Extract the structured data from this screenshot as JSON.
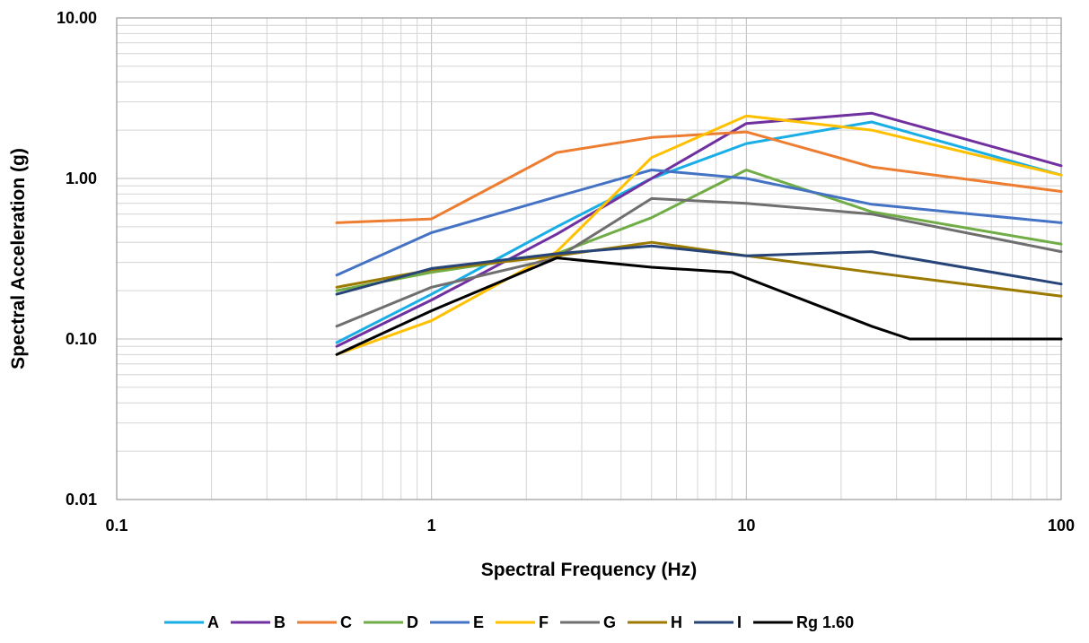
{
  "chart_data": {
    "type": "line",
    "xscale": "log",
    "yscale": "log",
    "xlim": [
      0.1,
      100
    ],
    "ylim": [
      0.01,
      10
    ],
    "xlabel": "Spectral Frequency (Hz)",
    "ylabel": "Spectral Acceleration (g)",
    "xticks": [
      "0.1",
      "1",
      "10",
      "100"
    ],
    "yticks": [
      "0.01",
      "0.10",
      "1.00",
      "10.00"
    ],
    "grid": true,
    "legend_position": "bottom",
    "series": [
      {
        "name": "A",
        "color": "#1aaee6",
        "points": [
          [
            0.5,
            0.095
          ],
          [
            1,
            0.19
          ],
          [
            2.5,
            0.5
          ],
          [
            5,
            1.0
          ],
          [
            10,
            1.65
          ],
          [
            25,
            2.25
          ],
          [
            100,
            1.05
          ]
        ]
      },
      {
        "name": "B",
        "color": "#7030a0",
        "points": [
          [
            0.5,
            0.09
          ],
          [
            1,
            0.175
          ],
          [
            2.5,
            0.45
          ],
          [
            5,
            1.0
          ],
          [
            10,
            2.2
          ],
          [
            25,
            2.55
          ],
          [
            100,
            1.2
          ]
        ]
      },
      {
        "name": "C",
        "color": "#ed7d31",
        "points": [
          [
            0.5,
            0.53
          ],
          [
            1,
            0.56
          ],
          [
            2.5,
            1.45
          ],
          [
            5,
            1.8
          ],
          [
            10,
            1.95
          ],
          [
            25,
            1.18
          ],
          [
            100,
            0.83
          ]
        ]
      },
      {
        "name": "D",
        "color": "#70ad47",
        "points": [
          [
            0.5,
            0.2
          ],
          [
            1,
            0.26
          ],
          [
            2.5,
            0.34
          ],
          [
            5,
            0.57
          ],
          [
            10,
            1.13
          ],
          [
            25,
            0.62
          ],
          [
            100,
            0.39
          ]
        ]
      },
      {
        "name": "E",
        "color": "#4472c4",
        "points": [
          [
            0.5,
            0.25
          ],
          [
            1,
            0.46
          ],
          [
            2.5,
            0.77
          ],
          [
            5,
            1.13
          ],
          [
            10,
            1.0
          ],
          [
            25,
            0.69
          ],
          [
            100,
            0.53
          ]
        ]
      },
      {
        "name": "F",
        "color": "#ffc000",
        "points": [
          [
            0.5,
            0.08
          ],
          [
            1,
            0.13
          ],
          [
            2.5,
            0.35
          ],
          [
            5,
            1.35
          ],
          [
            10,
            2.45
          ],
          [
            25,
            2.0
          ],
          [
            100,
            1.05
          ]
        ]
      },
      {
        "name": "G",
        "color": "#6f6f6f",
        "points": [
          [
            0.5,
            0.12
          ],
          [
            1,
            0.21
          ],
          [
            2.5,
            0.32
          ],
          [
            5,
            0.75
          ],
          [
            10,
            0.7
          ],
          [
            25,
            0.6
          ],
          [
            100,
            0.35
          ]
        ]
      },
      {
        "name": "H",
        "color": "#9c7a00",
        "points": [
          [
            0.5,
            0.21
          ],
          [
            1,
            0.27
          ],
          [
            2.5,
            0.33
          ],
          [
            5,
            0.4
          ],
          [
            10,
            0.33
          ],
          [
            25,
            0.26
          ],
          [
            100,
            0.185
          ]
        ]
      },
      {
        "name": "I",
        "color": "#264478",
        "points": [
          [
            0.5,
            0.19
          ],
          [
            1,
            0.275
          ],
          [
            2.5,
            0.34
          ],
          [
            5,
            0.38
          ],
          [
            10,
            0.33
          ],
          [
            25,
            0.35
          ],
          [
            100,
            0.22
          ]
        ]
      },
      {
        "name": "Rg 1.60",
        "color": "#000000",
        "points": [
          [
            0.5,
            0.08
          ],
          [
            1,
            0.15
          ],
          [
            2.5,
            0.32
          ],
          [
            5,
            0.28
          ],
          [
            9,
            0.26
          ],
          [
            25,
            0.12
          ],
          [
            33,
            0.1
          ],
          [
            100,
            0.1
          ]
        ]
      }
    ]
  }
}
